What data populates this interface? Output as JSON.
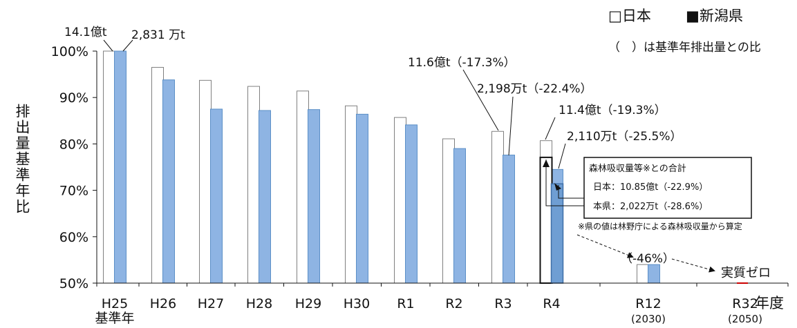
{
  "chart_data": {
    "type": "bar",
    "ylabel": "排出量基準年比",
    "xlabel": "年度",
    "ylim": [
      50,
      100
    ],
    "yticks": [
      "100%",
      "90%",
      "80%",
      "70%",
      "60%",
      "50%"
    ],
    "ytick_values": [
      100,
      90,
      80,
      70,
      60,
      50
    ],
    "categories": [
      "H25",
      "H26",
      "H27",
      "H28",
      "H29",
      "H30",
      "R1",
      "R2",
      "R3",
      "R4",
      "R12",
      "R32"
    ],
    "category_sublabels": [
      "基準年",
      "",
      "",
      "",
      "",
      "",
      "",
      "",
      "",
      "",
      "(2030)",
      "(2050)"
    ],
    "series": [
      {
        "name": "日本",
        "color": "#ffffff",
        "values": [
          100,
          96.5,
          93.7,
          92.4,
          91.4,
          88.2,
          85.7,
          81.1,
          82.7,
          80.7,
          54,
          null
        ]
      },
      {
        "name": "新潟県",
        "color": "#8eb4e3",
        "values": [
          100,
          93.8,
          87.5,
          87.2,
          87.4,
          86.4,
          84.1,
          79.0,
          77.6,
          74.5,
          54,
          null
        ]
      }
    ],
    "annotations": {
      "base_japan": "14.1億t",
      "base_niigata": "2,831 万t",
      "r3_japan": "11.6億t（-17.3%）",
      "r3_niigata": "2,198万t（-22.4%）",
      "r4_japan": "11.4億t（-19.3%）",
      "r4_niigata": "2,110万t（-25.5%）",
      "target_2030": "（-46%）",
      "target_2050": "実質ゼロ",
      "legend_note": "（　）は基準年排出量との比",
      "footnote": "※県の値は林野庁による森林吸収量から算定"
    },
    "sink_box": {
      "title": "森林吸収量等※との合計",
      "japan": "日本：10.85億t（-22.9%）",
      "niigata": "本県：2,022万t（-28.6%）",
      "japan_value": 77.1,
      "niigata_value": 71.4
    },
    "legend": [
      {
        "label": "□日本",
        "color": "#ffffff"
      },
      {
        "label": "■新潟県",
        "color": "#8eb4e3"
      }
    ]
  }
}
